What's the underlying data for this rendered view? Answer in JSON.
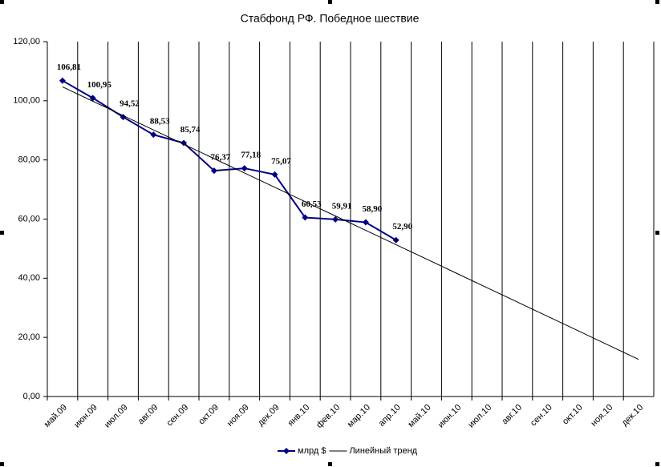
{
  "chart_data": {
    "type": "line",
    "title": "Стабфонд РФ. Победное шествие",
    "categories": [
      "май.09",
      "июн.09",
      "июл.09",
      "авг.09",
      "сен.09",
      "окт.09",
      "ноя.09",
      "дек.09",
      "янв.10",
      "фев.10",
      "мар.10",
      "апр.10",
      "май.10",
      "июн.10",
      "июл.10",
      "авг.10",
      "сен.10",
      "окт.10",
      "ноя.10",
      "дек.10"
    ],
    "series": [
      {
        "name": "млрд $",
        "color": "#000080",
        "values": [
          106.81,
          100.95,
          94.52,
          88.53,
          85.74,
          76.37,
          77.18,
          75.07,
          60.53,
          59.91,
          58.9,
          52.9,
          null,
          null,
          null,
          null,
          null,
          null,
          null,
          null
        ],
        "value_labels": [
          "106,81",
          "100,95",
          "94,52",
          "88,53",
          "85,74",
          "76,37",
          "77,18",
          "75,07",
          "60,53",
          "59,91",
          "58,90",
          "52,90",
          null,
          null,
          null,
          null,
          null,
          null,
          null,
          null
        ]
      },
      {
        "name": "Линейный тренд",
        "color": "#000000",
        "values": [
          104.7,
          99.85,
          95.0,
          90.15,
          85.3,
          80.45,
          75.6,
          70.75,
          65.9,
          61.05,
          56.2,
          51.35,
          46.5,
          41.65,
          36.8,
          31.95,
          27.1,
          22.25,
          17.4,
          12.55
        ]
      }
    ],
    "ylim": [
      0,
      120
    ],
    "yticks": [
      {
        "value": 0,
        "label": "0,00"
      },
      {
        "value": 20,
        "label": "20,00"
      },
      {
        "value": 40,
        "label": "40,00"
      },
      {
        "value": 60,
        "label": "60,00"
      },
      {
        "value": 80,
        "label": "80,00"
      },
      {
        "value": 100,
        "label": "100,00"
      },
      {
        "value": 120,
        "label": "120,00"
      }
    ],
    "legend": "bottom"
  }
}
